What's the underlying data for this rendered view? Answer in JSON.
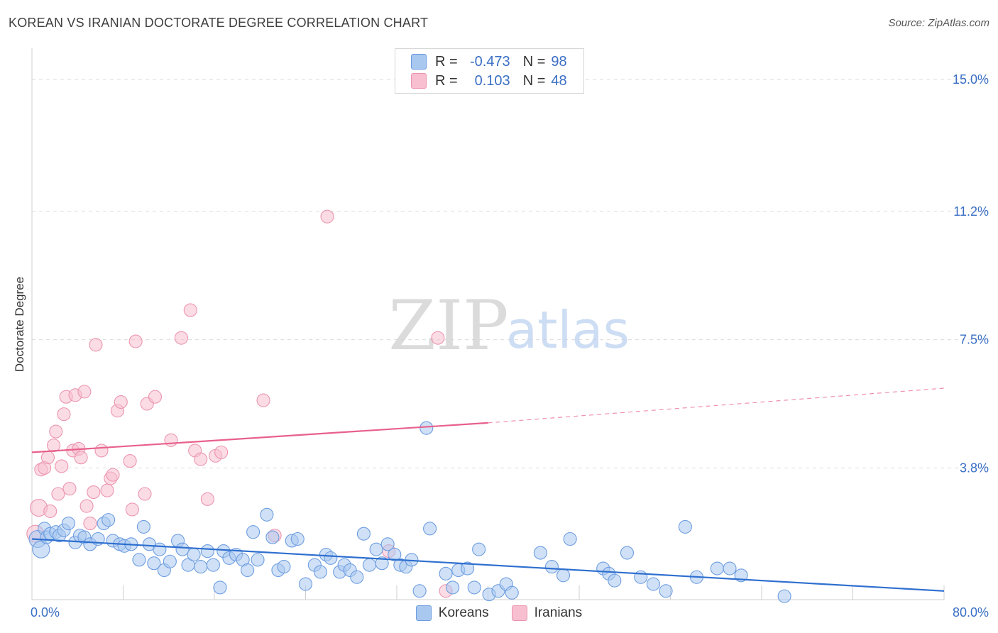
{
  "title": "KOREAN VS IRANIAN DOCTORATE DEGREE CORRELATION CHART",
  "source": "Source: ZipAtlas.com",
  "watermark": {
    "zip": "ZIP",
    "atlas": "atlas"
  },
  "legend": {
    "r_label": "R =",
    "n_label": "N =",
    "rows": [
      {
        "name": "Koreans",
        "r": "-0.473",
        "n": "98",
        "fill": "#a9c8f0",
        "stroke": "#6d9de0"
      },
      {
        "name": "Iranians",
        "r": "0.103",
        "n": "48",
        "fill": "#f7bfd0",
        "stroke": "#ec95b0"
      }
    ]
  },
  "chart_data": {
    "type": "scatter",
    "title": "KOREAN VS IRANIAN DOCTORATE DEGREE CORRELATION CHART",
    "xlabel": "",
    "ylabel": "Doctorate Degree",
    "xlim": [
      0,
      80
    ],
    "ylim": [
      0,
      15.7
    ],
    "x_tick_labels": [
      "0.0%",
      "80.0%"
    ],
    "y_ticks": [
      3.8,
      7.5,
      11.2,
      15.0
    ],
    "y_tick_labels": [
      "3.8%",
      "7.5%",
      "11.2%",
      "15.0%"
    ],
    "series": [
      {
        "name": "Koreans",
        "color": "#a9c8f0",
        "stroke": "#6d9de0",
        "line_color": "#2e6fcf",
        "trend": {
          "x0": 0,
          "y0": 1.75,
          "x1": 80,
          "y1": 0.25
        },
        "points": [
          [
            0.5,
            1.75
          ],
          [
            0.8,
            1.45
          ],
          [
            1.1,
            2.05
          ],
          [
            1.3,
            1.8
          ],
          [
            1.6,
            1.9
          ],
          [
            2.1,
            1.95
          ],
          [
            2.4,
            1.85
          ],
          [
            2.8,
            2.0
          ],
          [
            3.2,
            2.2
          ],
          [
            3.8,
            1.65
          ],
          [
            4.2,
            1.85
          ],
          [
            4.6,
            1.8
          ],
          [
            5.1,
            1.6
          ],
          [
            5.8,
            1.75
          ],
          [
            6.3,
            2.2
          ],
          [
            6.7,
            2.3
          ],
          [
            7.1,
            1.7
          ],
          [
            7.7,
            1.6
          ],
          [
            8.1,
            1.55
          ],
          [
            8.7,
            1.6
          ],
          [
            9.4,
            1.15
          ],
          [
            9.8,
            2.1
          ],
          [
            10.3,
            1.6
          ],
          [
            10.7,
            1.05
          ],
          [
            11.2,
            1.45
          ],
          [
            11.6,
            0.85
          ],
          [
            12.1,
            1.1
          ],
          [
            12.8,
            1.7
          ],
          [
            13.2,
            1.45
          ],
          [
            13.7,
            1.0
          ],
          [
            14.2,
            1.3
          ],
          [
            14.8,
            0.95
          ],
          [
            15.4,
            1.4
          ],
          [
            15.9,
            1.0
          ],
          [
            16.5,
            0.35
          ],
          [
            16.8,
            1.4
          ],
          [
            17.3,
            1.2
          ],
          [
            17.9,
            1.3
          ],
          [
            18.5,
            1.15
          ],
          [
            18.9,
            0.85
          ],
          [
            19.4,
            1.95
          ],
          [
            19.8,
            1.15
          ],
          [
            20.6,
            2.45
          ],
          [
            21.1,
            1.8
          ],
          [
            21.6,
            0.85
          ],
          [
            22.1,
            0.95
          ],
          [
            22.8,
            1.7
          ],
          [
            23.3,
            1.75
          ],
          [
            24.0,
            0.45
          ],
          [
            24.8,
            1.0
          ],
          [
            25.3,
            0.8
          ],
          [
            25.8,
            1.3
          ],
          [
            26.2,
            1.2
          ],
          [
            27.0,
            0.8
          ],
          [
            27.4,
            1.0
          ],
          [
            27.9,
            0.85
          ],
          [
            28.5,
            0.65
          ],
          [
            29.1,
            1.9
          ],
          [
            29.6,
            1.0
          ],
          [
            30.2,
            1.45
          ],
          [
            30.7,
            1.05
          ],
          [
            31.2,
            1.6
          ],
          [
            31.8,
            1.3
          ],
          [
            32.3,
            1.0
          ],
          [
            32.8,
            0.95
          ],
          [
            33.3,
            1.15
          ],
          [
            34.0,
            0.25
          ],
          [
            34.6,
            4.95
          ],
          [
            34.9,
            2.05
          ],
          [
            36.3,
            0.75
          ],
          [
            36.9,
            0.35
          ],
          [
            37.4,
            0.85
          ],
          [
            38.2,
            0.9
          ],
          [
            38.8,
            0.35
          ],
          [
            39.2,
            1.45
          ],
          [
            40.1,
            0.15
          ],
          [
            40.9,
            0.25
          ],
          [
            41.6,
            0.45
          ],
          [
            42.1,
            0.2
          ],
          [
            44.6,
            1.35
          ],
          [
            45.6,
            0.95
          ],
          [
            46.6,
            0.7
          ],
          [
            47.2,
            1.75
          ],
          [
            50.1,
            0.9
          ],
          [
            50.6,
            0.75
          ],
          [
            51.1,
            0.55
          ],
          [
            52.2,
            1.35
          ],
          [
            53.4,
            0.65
          ],
          [
            54.5,
            0.45
          ],
          [
            55.6,
            0.25
          ],
          [
            57.3,
            2.1
          ],
          [
            58.3,
            0.65
          ],
          [
            60.1,
            0.9
          ],
          [
            61.2,
            0.9
          ],
          [
            62.2,
            0.7
          ],
          [
            66.0,
            0.1
          ]
        ]
      },
      {
        "name": "Iranians",
        "color": "#f7bfd0",
        "stroke": "#ec95b0",
        "line_color": "#e8608c",
        "trend": {
          "x0": 0,
          "y0": 4.25,
          "x1": 40,
          "y1": 5.1,
          "dashed_to": {
            "x": 80,
            "y": 6.1
          }
        },
        "points": [
          [
            0.3,
            1.9
          ],
          [
            0.6,
            2.65
          ],
          [
            0.8,
            3.75
          ],
          [
            1.1,
            3.8
          ],
          [
            1.4,
            4.1
          ],
          [
            1.6,
            2.55
          ],
          [
            1.9,
            4.45
          ],
          [
            2.1,
            4.85
          ],
          [
            2.3,
            3.05
          ],
          [
            2.6,
            3.85
          ],
          [
            2.8,
            5.35
          ],
          [
            3.0,
            5.85
          ],
          [
            3.3,
            3.2
          ],
          [
            3.6,
            4.3
          ],
          [
            3.8,
            5.9
          ],
          [
            4.1,
            4.35
          ],
          [
            4.3,
            4.1
          ],
          [
            4.6,
            6.0
          ],
          [
            4.8,
            2.7
          ],
          [
            5.1,
            2.2
          ],
          [
            5.4,
            3.1
          ],
          [
            5.6,
            7.35
          ],
          [
            6.1,
            4.3
          ],
          [
            6.6,
            3.15
          ],
          [
            6.9,
            3.5
          ],
          [
            7.1,
            3.6
          ],
          [
            7.5,
            5.45
          ],
          [
            7.8,
            5.7
          ],
          [
            8.6,
            4.0
          ],
          [
            8.8,
            2.6
          ],
          [
            9.1,
            7.45
          ],
          [
            9.9,
            3.05
          ],
          [
            10.1,
            5.65
          ],
          [
            10.8,
            5.85
          ],
          [
            12.2,
            4.6
          ],
          [
            13.1,
            7.55
          ],
          [
            13.9,
            8.35
          ],
          [
            14.3,
            4.3
          ],
          [
            14.8,
            4.05
          ],
          [
            15.4,
            2.9
          ],
          [
            16.1,
            4.15
          ],
          [
            16.6,
            4.25
          ],
          [
            20.3,
            5.75
          ],
          [
            21.3,
            1.85
          ],
          [
            25.9,
            11.05
          ],
          [
            31.3,
            1.4
          ],
          [
            35.6,
            7.55
          ],
          [
            36.3,
            0.25
          ]
        ]
      }
    ]
  }
}
